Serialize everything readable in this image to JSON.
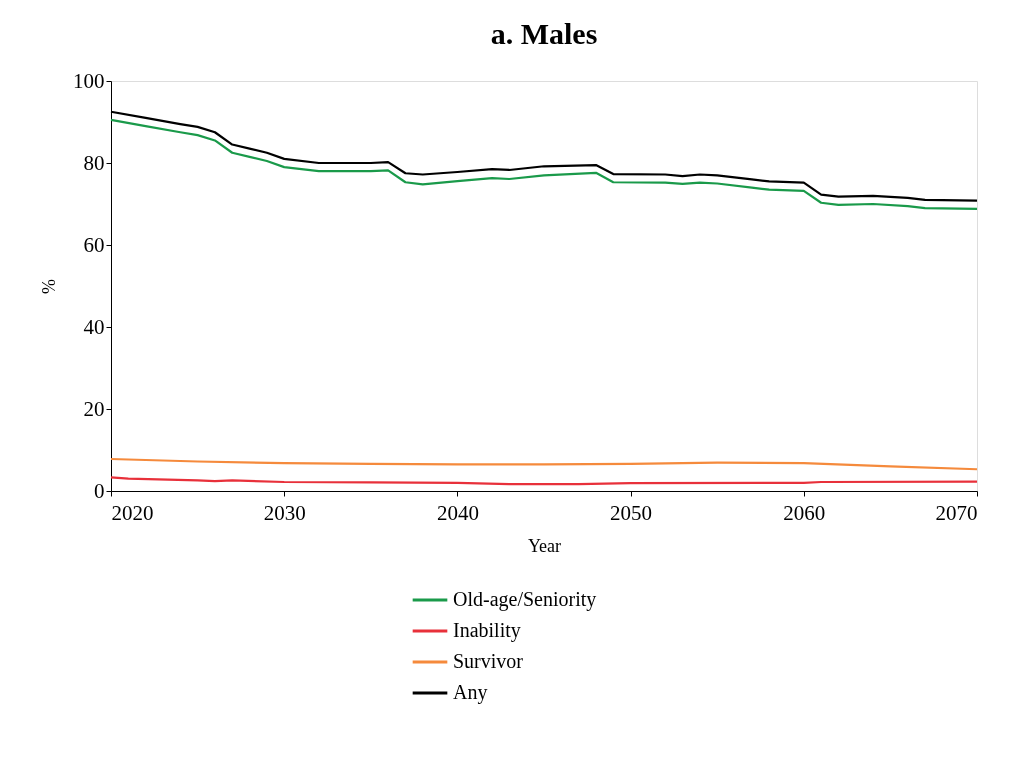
{
  "chart_data": {
    "type": "line",
    "title": "a. Males",
    "xlabel": "Year",
    "ylabel": "%",
    "xlim": [
      2020,
      2070
    ],
    "xticks": [
      2020,
      2030,
      2040,
      2050,
      2060,
      2070
    ],
    "ylim": [
      0,
      100
    ],
    "yticks": [
      0,
      20,
      40,
      60,
      80,
      100
    ],
    "grid": false,
    "legend": "bottom",
    "marker": "none",
    "line_style": "solid",
    "series": [
      {
        "name": "Old-age/Seniority",
        "color": "#1a9a4a",
        "x": [
          2020,
          2022,
          2024,
          2025,
          2026,
          2027,
          2028,
          2029,
          2030,
          2032,
          2035,
          2036,
          2037,
          2038,
          2040,
          2042,
          2043,
          2045,
          2048,
          2049,
          2052,
          2053,
          2054,
          2055,
          2057,
          2058,
          2060,
          2061,
          2062,
          2064,
          2066,
          2067,
          2070
        ],
        "values": [
          90.5,
          89,
          87.5,
          86.8,
          85.5,
          82.5,
          81.5,
          80.5,
          79,
          78,
          78,
          78.2,
          75.3,
          74.8,
          75.6,
          76.3,
          76.1,
          77,
          77.6,
          75.3,
          75.2,
          74.9,
          75.2,
          75,
          74,
          73.5,
          73.2,
          70.3,
          69.8,
          70,
          69.5,
          69,
          68.8
        ]
      },
      {
        "name": "Inability",
        "color": "#e8303a",
        "x": [
          2020,
          2021,
          2025,
          2026,
          2027,
          2030,
          2035,
          2040,
          2043,
          2047,
          2050,
          2060,
          2061,
          2070
        ],
        "values": [
          3.3,
          3.0,
          2.6,
          2.4,
          2.6,
          2.2,
          2.1,
          2.0,
          1.7,
          1.7,
          1.9,
          2.0,
          2.2,
          2.3
        ]
      },
      {
        "name": "Survivor",
        "color": "#f58a3c",
        "x": [
          2020,
          2025,
          2030,
          2035,
          2040,
          2045,
          2050,
          2055,
          2060,
          2065,
          2070
        ],
        "values": [
          7.8,
          7.2,
          6.8,
          6.6,
          6.5,
          6.5,
          6.6,
          6.9,
          6.8,
          6.0,
          5.3
        ]
      },
      {
        "name": "Any",
        "color": "#000000",
        "x": [
          2020,
          2022,
          2024,
          2025,
          2026,
          2027,
          2028,
          2029,
          2030,
          2032,
          2035,
          2036,
          2037,
          2038,
          2040,
          2042,
          2043,
          2045,
          2048,
          2049,
          2052,
          2053,
          2054,
          2055,
          2057,
          2058,
          2060,
          2061,
          2062,
          2064,
          2066,
          2067,
          2070
        ],
        "values": [
          92.5,
          91,
          89.5,
          88.8,
          87.5,
          84.5,
          83.5,
          82.5,
          81,
          80,
          80,
          80.2,
          77.5,
          77.2,
          77.8,
          78.5,
          78.3,
          79.2,
          79.5,
          77.3,
          77.2,
          76.8,
          77.2,
          77,
          76,
          75.5,
          75.2,
          72.3,
          71.8,
          72,
          71.5,
          71,
          70.8
        ]
      }
    ]
  }
}
